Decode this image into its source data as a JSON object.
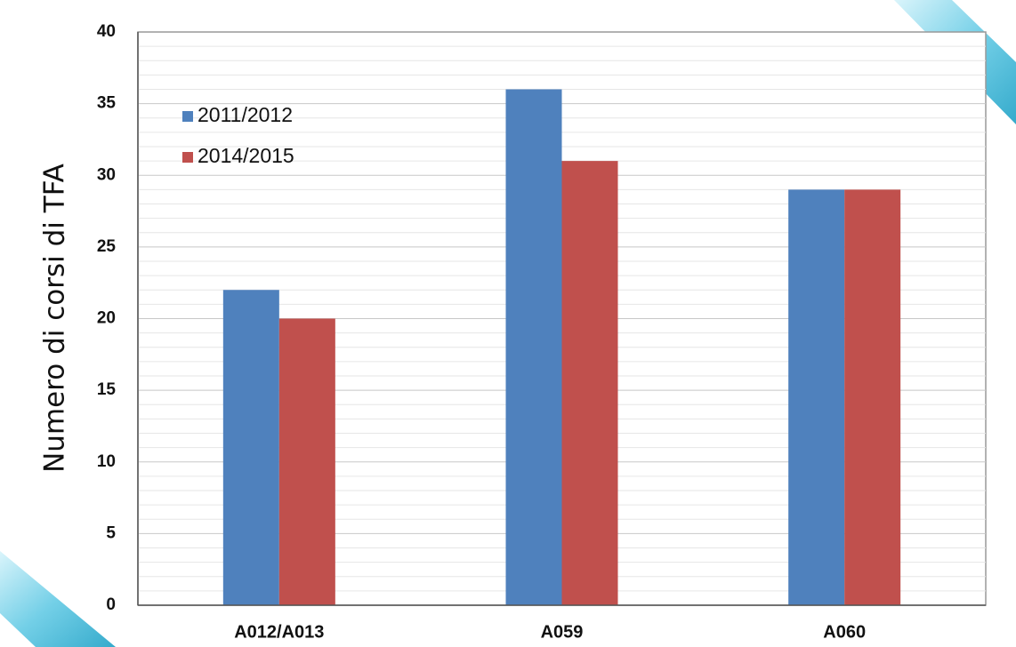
{
  "chart_data": {
    "type": "bar",
    "categories": [
      "A012/A013",
      "A059",
      "A060"
    ],
    "series": [
      {
        "name": "2011/2012",
        "values": [
          22,
          36,
          29
        ],
        "color": "#4f81bd"
      },
      {
        "name": "2014/2015",
        "values": [
          20,
          31,
          29
        ],
        "color": "#c0504d"
      }
    ],
    "ylabel": "Numero di corsi di TFA",
    "xlabel": "",
    "ylim": [
      0,
      40
    ],
    "yticks": [
      "0",
      "5",
      "10",
      "15",
      "20",
      "25",
      "30",
      "35",
      "40"
    ],
    "grid": true,
    "legend_position": "top-left"
  }
}
